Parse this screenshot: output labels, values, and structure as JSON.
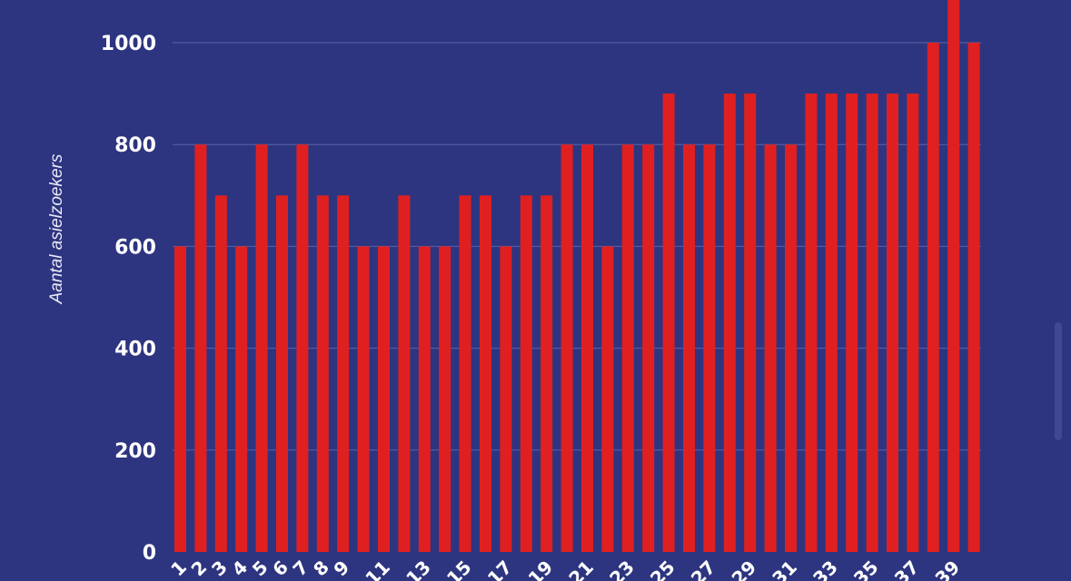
{
  "chart_data": {
    "type": "bar",
    "title": "",
    "xlabel": "",
    "ylabel": "Aantal asielzoekers",
    "ylim": [
      0,
      1080
    ],
    "yticks": [
      0,
      200,
      400,
      600,
      800,
      1000
    ],
    "grid": true,
    "bar_color": "#e02020",
    "background": "#2d3580",
    "categories": [
      "1",
      "2",
      "3",
      "4",
      "5",
      "6",
      "7",
      "8",
      "9",
      "10",
      "11",
      "12",
      "13",
      "14",
      "15",
      "16",
      "17",
      "18",
      "19",
      "20",
      "21",
      "22",
      "23",
      "24",
      "25",
      "26",
      "27",
      "28",
      "29",
      "30",
      "31",
      "32",
      "33",
      "34",
      "35",
      "36",
      "37",
      "38",
      "39",
      "40"
    ],
    "x_tick_labels": [
      "1",
      "2",
      "3",
      "4",
      "5",
      "6",
      "7",
      "8",
      "9",
      "11",
      "13",
      "15",
      "17",
      "19",
      "21",
      "23",
      "25",
      "27",
      "29",
      "31",
      "33",
      "35",
      "37",
      "39"
    ],
    "values": [
      600,
      800,
      700,
      600,
      800,
      700,
      800,
      700,
      700,
      600,
      600,
      700,
      600,
      600,
      700,
      700,
      600,
      700,
      700,
      800,
      800,
      600,
      800,
      800,
      900,
      800,
      800,
      900,
      900,
      800,
      800,
      900,
      900,
      900,
      900,
      900,
      900,
      1000,
      1100,
      1000
    ]
  }
}
